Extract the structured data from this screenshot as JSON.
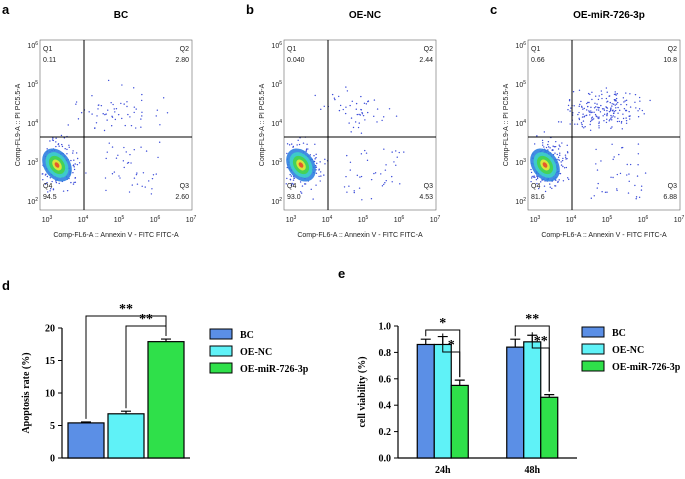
{
  "flow_panels": [
    {
      "letter": "a",
      "title": "BC",
      "quadrants": [
        {
          "name": "Q1",
          "value": "0.11"
        },
        {
          "name": "Q2",
          "value": "2.80"
        },
        {
          "name": "Q3",
          "value": "2.60"
        },
        {
          "name": "Q4",
          "value": "94.5"
        }
      ],
      "xlabel": "Comp-FL6-A :: Annexin V - FITC FITC-A",
      "ylabel": "Comp-FL9-A :: PI PC5.5-A",
      "xticks": [
        {
          "base": "10",
          "exponent": "3"
        },
        {
          "base": "10",
          "exponent": "4"
        },
        {
          "base": "10",
          "exponent": "5"
        },
        {
          "base": "10",
          "exponent": "6"
        },
        {
          "base": "10",
          "exponent": "7"
        }
      ],
      "yticks": [
        {
          "base": "10",
          "exponent": "6"
        },
        {
          "base": "10",
          "exponent": "5"
        },
        {
          "base": "10",
          "exponent": "4"
        },
        {
          "base": "10",
          "exponent": "3"
        },
        {
          "base": "10",
          "exponent": "2"
        }
      ]
    },
    {
      "letter": "b",
      "title": "OE-NC",
      "quadrants": [
        {
          "name": "Q1",
          "value": "0.040"
        },
        {
          "name": "Q2",
          "value": "2.44"
        },
        {
          "name": "Q3",
          "value": "4.53"
        },
        {
          "name": "Q4",
          "value": "93.0"
        }
      ],
      "xlabel": "Comp-FL6-A :: Annexin V - FITC FITC-A",
      "ylabel": "Comp-FL9-A :: PI PC5.5-A",
      "xticks": [
        {
          "base": "10",
          "exponent": "3"
        },
        {
          "base": "10",
          "exponent": "4"
        },
        {
          "base": "10",
          "exponent": "5"
        },
        {
          "base": "10",
          "exponent": "6"
        },
        {
          "base": "10",
          "exponent": "7"
        }
      ],
      "yticks": [
        {
          "base": "10",
          "exponent": "6"
        },
        {
          "base": "10",
          "exponent": "5"
        },
        {
          "base": "10",
          "exponent": "4"
        },
        {
          "base": "10",
          "exponent": "3"
        },
        {
          "base": "10",
          "exponent": "2"
        }
      ]
    },
    {
      "letter": "c",
      "title": "OE-miR-726-3p",
      "quadrants": [
        {
          "name": "Q1",
          "value": "0.66"
        },
        {
          "name": "Q2",
          "value": "10.8"
        },
        {
          "name": "Q3",
          "value": "6.88"
        },
        {
          "name": "Q4",
          "value": "81.6"
        }
      ],
      "xlabel": "Comp-FL6-A :: Annexin V - FITC FITC-A",
      "ylabel": "Comp-FL9-A :: PI PC5.5-A",
      "xticks": [
        {
          "base": "10",
          "exponent": "3"
        },
        {
          "base": "10",
          "exponent": "4"
        },
        {
          "base": "10",
          "exponent": "5"
        },
        {
          "base": "10",
          "exponent": "6"
        },
        {
          "base": "10",
          "exponent": "7"
        }
      ],
      "yticks": [
        {
          "base": "10",
          "exponent": "6"
        },
        {
          "base": "10",
          "exponent": "5"
        },
        {
          "base": "10",
          "exponent": "4"
        },
        {
          "base": "10",
          "exponent": "3"
        },
        {
          "base": "10",
          "exponent": "2"
        }
      ]
    }
  ],
  "chart_data": [
    {
      "type": "bar",
      "letter": "d",
      "ylabel": "Apoptosis rate (%)",
      "categories": [
        null
      ],
      "series": [
        {
          "name": "BC",
          "color": "#5b8fe6",
          "values": [
            5.4
          ],
          "errors": [
            0.15
          ]
        },
        {
          "name": "OE-NC",
          "color": "#5ff2f7",
          "values": [
            6.8
          ],
          "errors": [
            0.4
          ]
        },
        {
          "name": "OE-miR-726-3p",
          "color": "#2fe04a",
          "values": [
            17.9
          ],
          "errors": [
            0.4
          ]
        }
      ],
      "ylim": [
        0,
        20
      ],
      "yticks": [
        0,
        5,
        10,
        15,
        20
      ],
      "annotations": [
        "**",
        "**"
      ]
    },
    {
      "type": "bar",
      "letter": "e",
      "ylabel": "cell viability (%)",
      "categories": [
        "24h",
        "48h"
      ],
      "series": [
        {
          "name": "BC",
          "color": "#5b8fe6",
          "values": [
            0.86,
            0.84
          ],
          "errors": [
            0.04,
            0.06
          ]
        },
        {
          "name": "OE-NC",
          "color": "#5ff2f7",
          "values": [
            0.86,
            0.88
          ],
          "errors": [
            0.06,
            0.05
          ]
        },
        {
          "name": "OE-miR-726-3p",
          "color": "#2fe04a",
          "values": [
            0.55,
            0.46
          ],
          "errors": [
            0.04,
            0.02
          ]
        }
      ],
      "ylim": [
        0,
        1.0
      ],
      "yticks": [
        {
          "value": 0,
          "label": "0.0"
        },
        0.2,
        0.4,
        0.6,
        0.8,
        {
          "value": 1.0,
          "label": "1.0"
        }
      ],
      "annotations": [
        "*",
        "*",
        "**",
        "**"
      ]
    }
  ]
}
